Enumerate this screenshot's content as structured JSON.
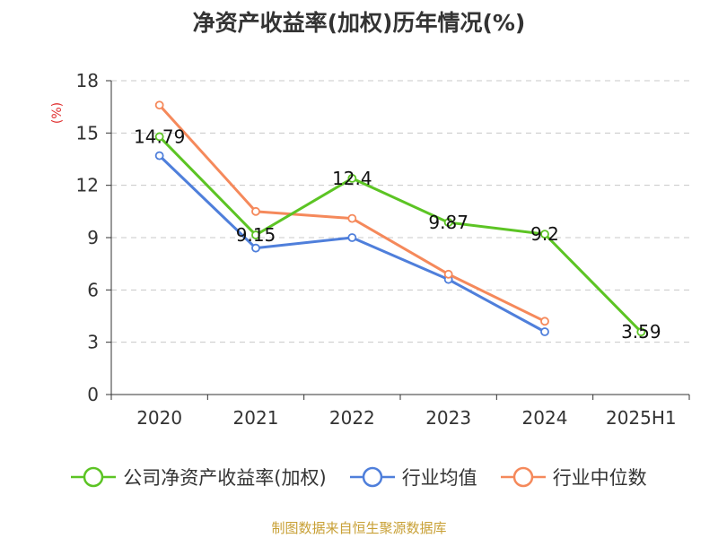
{
  "chart_data": {
    "type": "line",
    "title": "净资产收益率(加权)历年情况(%)",
    "ylabel": "(%)",
    "xlabel": "",
    "categories": [
      "2020",
      "2021",
      "2022",
      "2023",
      "2024",
      "2025H1"
    ],
    "ylim": [
      0,
      18
    ],
    "yticks": [
      0,
      3,
      6,
      9,
      12,
      15,
      18
    ],
    "grid": true,
    "legend_position": "bottom",
    "series": [
      {
        "name": "公司净资产收益率(加权)",
        "color": "#5cc424",
        "values": [
          14.79,
          9.15,
          12.4,
          9.87,
          9.2,
          3.59
        ],
        "data_labels": [
          "14.79",
          "9.15",
          "12.4",
          "9.87",
          "9.2",
          "3.59"
        ]
      },
      {
        "name": "行业均值",
        "color": "#4f7fdb",
        "values": [
          13.7,
          8.4,
          9.0,
          6.6,
          3.6,
          null
        ]
      },
      {
        "name": "行业中位数",
        "color": "#f5895b",
        "values": [
          16.6,
          10.5,
          10.1,
          6.9,
          4.2,
          null
        ]
      }
    ]
  },
  "footer": {
    "source": "制图数据来自恒生聚源数据库"
  }
}
